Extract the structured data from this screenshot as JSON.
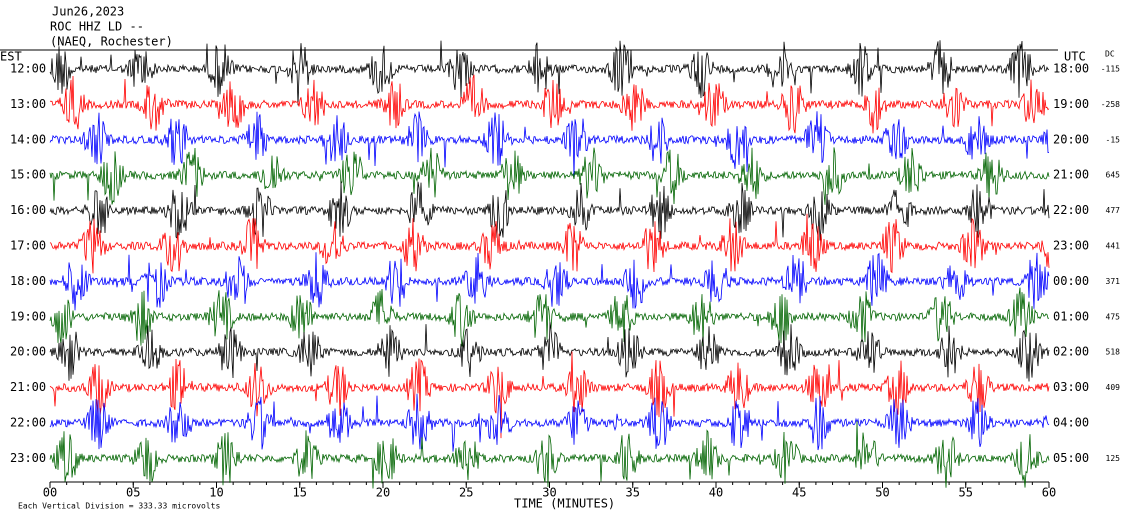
{
  "header": {
    "date": "Jun26,2023",
    "station": "ROC HHZ LD --",
    "location": "(NAEQ, Rochester)"
  },
  "left_label": "EST",
  "right_label": "UTC",
  "dc_label": "DC",
  "trace_colors": [
    "#000000",
    "#ff0000",
    "#0000ff",
    "#006400"
  ],
  "rows": [
    {
      "est": "12:00",
      "utc": "18:00",
      "dc": "-115"
    },
    {
      "est": "13:00",
      "utc": "19:00",
      "dc": "-258"
    },
    {
      "est": "14:00",
      "utc": "20:00",
      "dc": "-15"
    },
    {
      "est": "15:00",
      "utc": "21:00",
      "dc": "645"
    },
    {
      "est": "16:00",
      "utc": "22:00",
      "dc": "477"
    },
    {
      "est": "17:00",
      "utc": "23:00",
      "dc": "441"
    },
    {
      "est": "18:00",
      "utc": "00:00",
      "dc": "371"
    },
    {
      "est": "19:00",
      "utc": "01:00",
      "dc": "475"
    },
    {
      "est": "20:00",
      "utc": "02:00",
      "dc": "518"
    },
    {
      "est": "21:00",
      "utc": "03:00",
      "dc": "409"
    },
    {
      "est": "22:00",
      "utc": "04:00"
    },
    {
      "est": "23:00",
      "utc": "05:00",
      "dc": "125"
    }
  ],
  "x_ticks": [
    "00",
    "05",
    "10",
    "15",
    "20",
    "25",
    "30",
    "35",
    "40",
    "45",
    "50",
    "55",
    "60"
  ],
  "x_label": "TIME (MINUTES)",
  "footer": "Each Vertical Division = 333.33 microvolts"
}
